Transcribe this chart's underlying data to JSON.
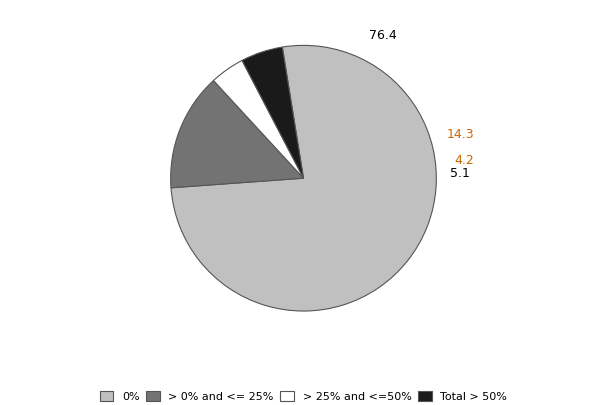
{
  "slices_ordered": [
    76.4,
    14.3,
    4.2,
    5.1
  ],
  "colors_ordered": [
    "#c0c0c0",
    "#737373",
    "#ffffff",
    "#1a1a1a"
  ],
  "label_texts": [
    "76.4",
    "14.3",
    "4.2",
    "5.1"
  ],
  "label_colors": [
    "#000000",
    "#cc6600",
    "#cc6600",
    "#000000"
  ],
  "label_radii": [
    1.22,
    1.22,
    1.22,
    1.22
  ],
  "legend_labels": [
    "0%",
    "> 0% and <= 25%",
    "> 25% and <=50%",
    "Total > 50%"
  ],
  "legend_colors": [
    "#c0c0c0",
    "#737373",
    "#ffffff",
    "#1a1a1a"
  ],
  "background_color": "#ffffff",
  "edge_color": "#555555",
  "startangle": 99.18
}
